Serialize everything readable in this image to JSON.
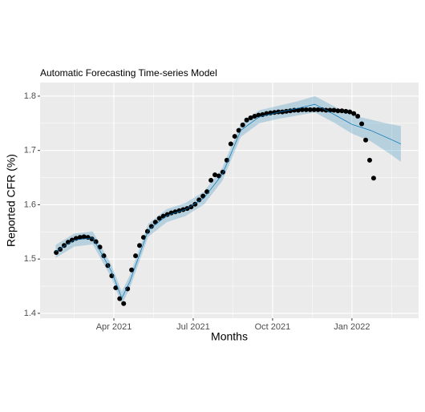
{
  "chart_data": {
    "type": "line",
    "title": "Automatic Forecasting Time-series Model",
    "x_label": "Months",
    "y_label": "Reported CFR (%)",
    "xlim": [
      0.21,
      14.52
    ],
    "ylim": [
      1.391,
      1.825
    ],
    "xticks": [
      {
        "value": 3,
        "label": "Apr 2021"
      },
      {
        "value": 6,
        "label": "Jul 2021"
      },
      {
        "value": 9,
        "label": "Oct 2021"
      },
      {
        "value": 12,
        "label": "Jan 2022"
      }
    ],
    "xminor": [
      1.5,
      4.5,
      7.5,
      10.5,
      13.5
    ],
    "yticks": [
      1.4,
      1.5,
      1.6,
      1.7,
      1.8
    ],
    "yminor": [
      1.45,
      1.55,
      1.65,
      1.75
    ],
    "grid": true,
    "series": [
      {
        "kind": "scatter",
        "color": "#000000",
        "x": [
          0.82,
          0.97,
          1.12,
          1.27,
          1.42,
          1.57,
          1.72,
          1.87,
          2.02,
          2.17,
          2.32,
          2.47,
          2.62,
          2.77,
          2.92,
          3.07,
          3.22,
          3.37,
          3.52,
          3.67,
          3.82,
          3.97,
          4.12,
          4.27,
          4.42,
          4.57,
          4.72,
          4.87,
          5.02,
          5.17,
          5.32,
          5.47,
          5.62,
          5.77,
          5.92,
          6.07,
          6.22,
          6.37,
          6.52,
          6.67,
          6.82,
          6.97,
          7.12,
          7.27,
          7.42,
          7.57,
          7.72,
          7.87,
          8.02,
          8.17,
          8.32,
          8.47,
          8.62,
          8.77,
          8.92,
          9.07,
          9.22,
          9.37,
          9.52,
          9.67,
          9.82,
          9.97,
          10.12,
          10.27,
          10.42,
          10.57,
          10.72,
          10.87,
          11.02,
          11.17,
          11.32,
          11.47,
          11.62,
          11.77,
          11.92,
          12.07,
          12.22,
          12.37,
          12.52,
          12.67,
          12.82
        ],
        "values": [
          1.512,
          1.518,
          1.525,
          1.531,
          1.535,
          1.538,
          1.54,
          1.541,
          1.54,
          1.537,
          1.532,
          1.522,
          1.506,
          1.488,
          1.469,
          1.447,
          1.427,
          1.418,
          1.445,
          1.48,
          1.506,
          1.525,
          1.54,
          1.551,
          1.56,
          1.568,
          1.575,
          1.579,
          1.582,
          1.585,
          1.587,
          1.589,
          1.591,
          1.593,
          1.596,
          1.601,
          1.609,
          1.616,
          1.624,
          1.645,
          1.655,
          1.653,
          1.66,
          1.682,
          1.712,
          1.726,
          1.737,
          1.747,
          1.756,
          1.76,
          1.763,
          1.765,
          1.766,
          1.768,
          1.769,
          1.77,
          1.771,
          1.771,
          1.772,
          1.773,
          1.774,
          1.774,
          1.775,
          1.775,
          1.775,
          1.775,
          1.775,
          1.775,
          1.774,
          1.774,
          1.774,
          1.773,
          1.773,
          1.772,
          1.771,
          1.768,
          1.763,
          1.749,
          1.719,
          1.682,
          1.649
        ]
      },
      {
        "kind": "band",
        "color": "#0072b2",
        "x": [
          0.8,
          1.5,
          2.2,
          2.9,
          3.3,
          3.6,
          4.3,
          5,
          5.7,
          6.4,
          7.1,
          7.8,
          8.5,
          9.2,
          9.9,
          10.6,
          11.3,
          12,
          12.7,
          13.4,
          13.85
        ],
        "upper": [
          1.526,
          1.547,
          1.551,
          1.49,
          1.44,
          1.47,
          1.565,
          1.592,
          1.603,
          1.624,
          1.668,
          1.749,
          1.774,
          1.782,
          1.79,
          1.8,
          1.782,
          1.765,
          1.757,
          1.749,
          1.745
        ],
        "lower": [
          1.502,
          1.523,
          1.527,
          1.466,
          1.416,
          1.446,
          1.541,
          1.568,
          1.579,
          1.6,
          1.644,
          1.725,
          1.75,
          1.758,
          1.764,
          1.77,
          1.752,
          1.731,
          1.717,
          1.695,
          1.679
        ]
      },
      {
        "kind": "line",
        "color": "#0072b2",
        "x": [
          0.8,
          1.5,
          2.2,
          2.9,
          3.3,
          3.6,
          4.3,
          5,
          5.7,
          6.4,
          7.1,
          7.8,
          8.5,
          9.2,
          9.9,
          10.6,
          11.3,
          12,
          12.7,
          13.4,
          13.85
        ],
        "values": [
          1.514,
          1.535,
          1.539,
          1.478,
          1.428,
          1.458,
          1.553,
          1.58,
          1.591,
          1.612,
          1.656,
          1.737,
          1.762,
          1.77,
          1.777,
          1.785,
          1.767,
          1.748,
          1.737,
          1.722,
          1.712
        ]
      }
    ]
  }
}
